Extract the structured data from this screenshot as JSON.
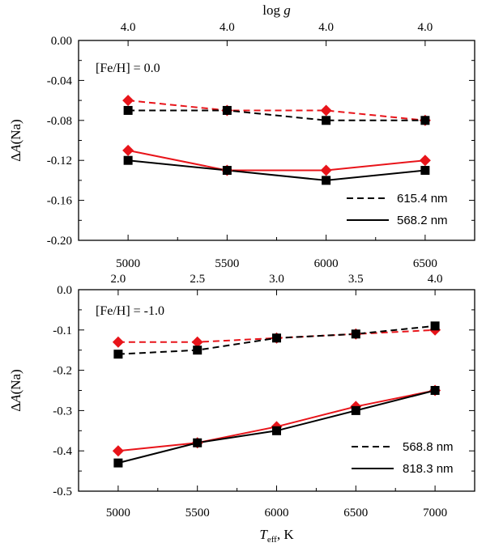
{
  "colors": {
    "red": "#e8141a",
    "black": "#000000",
    "frame": "#000000"
  },
  "chart_data": [
    {
      "type": "line",
      "annotation": "[Fe/H] = 0.0",
      "ylabel": "ΔA(Na)",
      "top_axis_label": "log g",
      "x_ticks": [
        5000,
        5500,
        6000,
        6500
      ],
      "x_tick_labels": [
        "5000",
        "5500",
        "6000",
        "6500"
      ],
      "xlim": [
        4750,
        6750
      ],
      "top_ticks": [
        5000,
        5500,
        6000,
        6500
      ],
      "top_tick_labels": [
        "4.0",
        "4.0",
        "4.0",
        "4.0"
      ],
      "y_ticks": [
        0.0,
        -0.04,
        -0.08,
        -0.12,
        -0.16,
        -0.2
      ],
      "y_tick_labels": [
        "0.00",
        "-0.04",
        "-0.08",
        "-0.12",
        "-0.16",
        "-0.20"
      ],
      "ylim": [
        -0.2,
        0.0
      ],
      "legend": [
        {
          "label": "615.4 nm",
          "style": "dashed"
        },
        {
          "label": "568.2 nm",
          "style": "solid"
        }
      ],
      "legend_position": "bottom-right",
      "series": [
        {
          "style": "dashed",
          "color": "red",
          "marker": "diamond",
          "x": [
            5000,
            5500,
            6000,
            6500
          ],
          "values": [
            -0.06,
            -0.07,
            -0.07,
            -0.08
          ]
        },
        {
          "style": "dashed",
          "color": "black",
          "marker": "square",
          "x": [
            5000,
            5500,
            6000,
            6500
          ],
          "values": [
            -0.07,
            -0.07,
            -0.08,
            -0.08
          ]
        },
        {
          "style": "solid",
          "color": "red",
          "marker": "diamond",
          "x": [
            5000,
            5500,
            6000,
            6500
          ],
          "values": [
            -0.11,
            -0.13,
            -0.13,
            -0.12
          ]
        },
        {
          "style": "solid",
          "color": "black",
          "marker": "square",
          "x": [
            5000,
            5500,
            6000,
            6500
          ],
          "values": [
            -0.12,
            -0.13,
            -0.14,
            -0.13
          ]
        }
      ]
    },
    {
      "type": "line",
      "annotation": "[Fe/H] = -1.0",
      "ylabel": "ΔA(Na)",
      "xlabel_main": "T",
      "xlabel_sub": "eff",
      "xlabel_tail": ", K",
      "x_ticks": [
        5000,
        5500,
        6000,
        6500,
        7000
      ],
      "x_tick_labels": [
        "5000",
        "5500",
        "6000",
        "6500",
        "7000"
      ],
      "xlim": [
        4750,
        7250
      ],
      "top_ticks": [
        5000,
        5500,
        6000,
        6500,
        7000
      ],
      "top_tick_labels": [
        "2.0",
        "2.5",
        "3.0",
        "3.5",
        "4.0"
      ],
      "y_ticks": [
        0.0,
        -0.1,
        -0.2,
        -0.3,
        -0.4,
        -0.5
      ],
      "y_tick_labels": [
        "0.0",
        "-0.1",
        "-0.2",
        "-0.3",
        "-0.4",
        "-0.5"
      ],
      "ylim": [
        -0.5,
        0.0
      ],
      "legend": [
        {
          "label": "568.8 nm",
          "style": "dashed"
        },
        {
          "label": "818.3 nm",
          "style": "solid"
        }
      ],
      "legend_position": "bottom-right",
      "series": [
        {
          "style": "dashed",
          "color": "red",
          "marker": "diamond",
          "x": [
            5000,
            5500,
            6000,
            6500,
            7000
          ],
          "values": [
            -0.13,
            -0.13,
            -0.12,
            -0.11,
            -0.1
          ]
        },
        {
          "style": "dashed",
          "color": "black",
          "marker": "square",
          "x": [
            5000,
            5500,
            6000,
            6500,
            7000
          ],
          "values": [
            -0.16,
            -0.15,
            -0.12,
            -0.11,
            -0.09
          ]
        },
        {
          "style": "solid",
          "color": "red",
          "marker": "diamond",
          "x": [
            5000,
            5500,
            6000,
            6500,
            7000
          ],
          "values": [
            -0.4,
            -0.38,
            -0.34,
            -0.29,
            -0.25
          ]
        },
        {
          "style": "solid",
          "color": "black",
          "marker": "square",
          "x": [
            5000,
            5500,
            6000,
            6500,
            7000
          ],
          "values": [
            -0.43,
            -0.38,
            -0.35,
            -0.3,
            -0.25
          ]
        }
      ]
    }
  ]
}
